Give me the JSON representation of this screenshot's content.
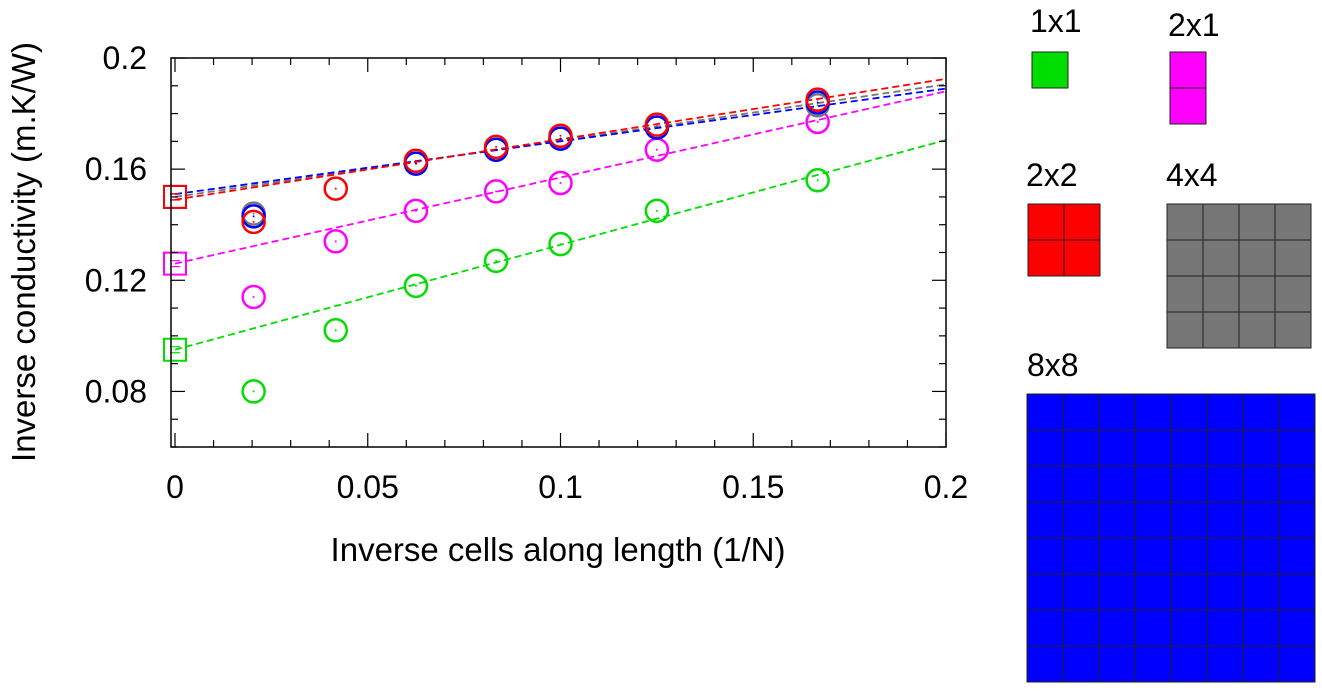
{
  "chart_data": {
    "type": "scatter",
    "title": "",
    "xlabel": "Inverse cells along length (1/N)",
    "ylabel": "Inverse conductivity (m.K/W)",
    "xlim": [
      0,
      0.2
    ],
    "ylim": [
      0.06,
      0.2
    ],
    "x_ticks": [
      0,
      0.05,
      0.1,
      0.15,
      0.2
    ],
    "x_tick_labels": [
      "0",
      "0.05",
      "0.1",
      "0.15",
      "0.2"
    ],
    "y_ticks": [
      0.08,
      0.12,
      0.16,
      0.2
    ],
    "y_tick_labels": [
      "0.08",
      "0.12",
      "0.16",
      "0.2"
    ],
    "grid": false,
    "legend": "right (cell-arrangement swatches)",
    "series": [
      {
        "name": "1x1",
        "color": "#00dd00",
        "grid_n": [
          1,
          1
        ],
        "x": [
          0.0204,
          0.0417,
          0.0625,
          0.0833,
          0.1,
          0.125,
          0.1667
        ],
        "y": [
          0.08,
          0.102,
          0.118,
          0.127,
          0.133,
          0.145,
          0.156
        ],
        "fit": [
          [
            0,
            0.095
          ],
          [
            0.2,
            0.1705
          ]
        ],
        "extrapolated": 0.095
      },
      {
        "name": "2x1",
        "color": "#ff00ff",
        "grid_n": [
          1,
          2
        ],
        "x": [
          0.0204,
          0.0417,
          0.0625,
          0.0833,
          0.1,
          0.125,
          0.1667
        ],
        "y": [
          0.114,
          0.134,
          0.145,
          0.152,
          0.155,
          0.167,
          0.177
        ],
        "fit": [
          [
            0,
            0.126
          ],
          [
            0.2,
            0.188
          ]
        ],
        "extrapolated": 0.126
      },
      {
        "name": "2x2",
        "color": "#ff0000",
        "grid_n": [
          2,
          2
        ],
        "x": [
          0.0204,
          0.0417,
          0.0625,
          0.0833,
          0.1,
          0.125,
          0.1667
        ],
        "y": [
          0.141,
          0.153,
          0.163,
          0.168,
          0.172,
          0.176,
          0.185
        ],
        "fit": [
          [
            0,
            0.149
          ],
          [
            0.2,
            0.1925
          ]
        ],
        "extrapolated": 0.15
      },
      {
        "name": "4x4",
        "color": "#777777",
        "grid_n": [
          4,
          4
        ],
        "x": [
          0.0204,
          0.0625,
          0.0833,
          0.1,
          0.125,
          0.1667
        ],
        "y": [
          0.144,
          0.162,
          0.167,
          0.171,
          0.175,
          0.183
        ],
        "fit": [
          [
            0,
            0.15
          ],
          [
            0.2,
            0.1905
          ]
        ],
        "extrapolated": 0.15
      },
      {
        "name": "8x8",
        "color": "#0000ff",
        "grid_n": [
          8,
          8
        ],
        "x": [
          0.0204,
          0.0625,
          0.0833,
          0.1,
          0.125,
          0.1667
        ],
        "y": [
          0.143,
          0.162,
          0.167,
          0.171,
          0.175,
          0.184
        ],
        "fit": [
          [
            0,
            0.151
          ],
          [
            0.2,
            0.189
          ]
        ],
        "extrapolated": 0.15
      }
    ]
  }
}
